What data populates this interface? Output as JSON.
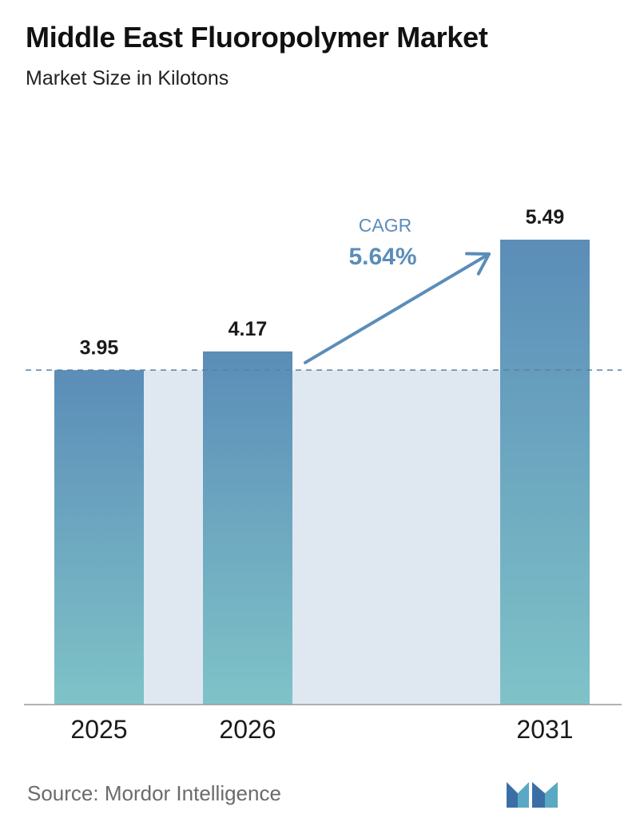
{
  "header": {
    "title": "Middle East Fluoropolymer Market",
    "subtitle": "Market Size in Kilotons"
  },
  "chart_data": {
    "type": "bar",
    "categories": [
      "2025",
      "2026",
      "2031"
    ],
    "values": [
      3.95,
      4.17,
      5.49
    ],
    "value_labels": [
      "3.95",
      "4.17",
      "5.49"
    ],
    "ylim": [
      0,
      5.49
    ],
    "reference_line_value": 3.95,
    "annotation": {
      "label": "CAGR",
      "value": "5.64%"
    },
    "colors": {
      "bar_top": "#5b8db8",
      "bar_bottom": "#7fc3c8",
      "area_fill": "#dfe8f1",
      "arrow": "#5b8db8",
      "dashed_line": "#5b7fa6",
      "baseline": "#999999"
    }
  },
  "footer": {
    "source": "Source:  Mordor Intelligence",
    "logo_icon": "mordor-intelligence-logo-icon"
  }
}
